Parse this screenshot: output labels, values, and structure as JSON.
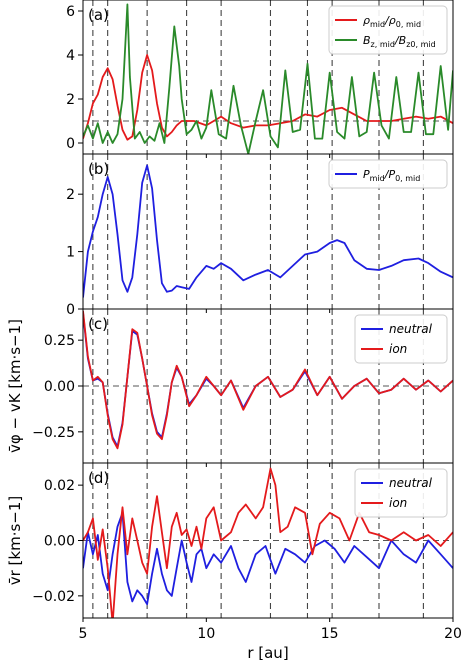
{
  "colors": {
    "red": "#e41a1c",
    "green": "#2a8a2a",
    "blue": "#1f1fe0",
    "refline": "#555555",
    "vline": "#444444"
  },
  "vlines": [
    5.4,
    6.0,
    7.6,
    9.2,
    10.6,
    12.6,
    14.1,
    15.1,
    17.0,
    18.8
  ],
  "xaxis": {
    "label": "r [au]",
    "range": [
      5,
      20
    ],
    "ticks": [
      "5",
      "10",
      "15",
      "20"
    ]
  },
  "chart_data": [
    {
      "type": "line",
      "panel_label": "(a)",
      "ylim": [
        -0.5,
        6.5
      ],
      "yticks": [
        "0",
        "2",
        "4",
        "6"
      ],
      "ylabel": "",
      "refline_y": 1.0,
      "legend_position": "top-right",
      "series": [
        {
          "name": "ρmid/ρ0,mid",
          "color": "red",
          "legend_main": "ρ",
          "legend_sub": "mid",
          "legend_div": "/ρ",
          "legend_sub2": "0, mid",
          "x": [
            5.0,
            5.2,
            5.4,
            5.6,
            5.8,
            6.0,
            6.2,
            6.4,
            6.6,
            6.8,
            7.0,
            7.2,
            7.4,
            7.6,
            7.8,
            8.0,
            8.2,
            8.4,
            8.6,
            8.8,
            9.0,
            9.5,
            10.0,
            10.6,
            11.0,
            11.5,
            12.0,
            12.5,
            13.0,
            13.5,
            14.0,
            14.5,
            15.0,
            15.5,
            16.0,
            16.5,
            17.0,
            17.5,
            18.0,
            18.5,
            19.0,
            19.5,
            20.0
          ],
          "y": [
            0.2,
            0.9,
            1.8,
            2.2,
            3.0,
            3.4,
            2.9,
            1.7,
            0.6,
            0.15,
            0.3,
            1.5,
            3.2,
            4.0,
            3.3,
            1.8,
            0.7,
            0.3,
            0.5,
            0.8,
            1.0,
            1.0,
            0.8,
            1.2,
            0.9,
            0.7,
            0.8,
            0.8,
            0.9,
            1.0,
            1.3,
            1.2,
            1.5,
            1.6,
            1.3,
            1.0,
            1.0,
            1.0,
            1.1,
            1.2,
            1.1,
            1.2,
            0.9
          ]
        },
        {
          "name": "Bz,mid/Bz0,mid",
          "color": "green",
          "legend_main": "B",
          "legend_sub": "z, mid",
          "legend_div": "/B",
          "legend_sub2": "z0, mid",
          "x": [
            5.0,
            5.2,
            5.4,
            5.6,
            5.8,
            6.0,
            6.2,
            6.4,
            6.6,
            6.8,
            6.9,
            7.1,
            7.3,
            7.5,
            7.7,
            7.9,
            8.1,
            8.3,
            8.5,
            8.7,
            8.9,
            9.0,
            9.2,
            9.4,
            9.6,
            9.8,
            10.0,
            10.2,
            10.5,
            10.8,
            11.1,
            11.4,
            11.7,
            12.0,
            12.3,
            12.6,
            12.9,
            13.2,
            13.5,
            13.8,
            14.1,
            14.4,
            14.7,
            15.0,
            15.3,
            15.6,
            15.9,
            16.2,
            16.5,
            16.8,
            17.1,
            17.4,
            17.7,
            18.0,
            18.3,
            18.6,
            18.9,
            19.2,
            19.5,
            19.8,
            20.0
          ],
          "y": [
            0.3,
            0.8,
            0.2,
            0.9,
            0.0,
            0.5,
            0.0,
            0.4,
            2.0,
            6.3,
            3.0,
            0.2,
            0.5,
            0.0,
            0.3,
            0.1,
            0.9,
            0.0,
            2.5,
            5.3,
            3.5,
            2.0,
            0.4,
            0.6,
            1.0,
            0.2,
            0.7,
            2.4,
            0.4,
            0.2,
            2.6,
            0.8,
            -0.5,
            1.0,
            2.4,
            0.3,
            -0.2,
            3.3,
            0.5,
            0.6,
            3.6,
            0.2,
            0.2,
            3.2,
            0.5,
            0.2,
            3.0,
            0.3,
            0.5,
            3.2,
            0.8,
            0.2,
            3.0,
            0.5,
            0.5,
            3.2,
            0.4,
            0.4,
            3.5,
            0.6,
            3.3
          ]
        }
      ]
    },
    {
      "type": "line",
      "panel_label": "(b)",
      "ylim": [
        0,
        2.7
      ],
      "yticks": [
        "0",
        "1",
        "2"
      ],
      "ylabel": "",
      "legend_position": "top-right",
      "series": [
        {
          "name": "Pmid/P0,mid",
          "color": "blue",
          "legend_main": "P",
          "legend_sub": "mid",
          "legend_div": "/P",
          "legend_sub2": "0, mid",
          "x": [
            5.0,
            5.2,
            5.4,
            5.6,
            5.8,
            6.0,
            6.2,
            6.4,
            6.6,
            6.8,
            7.0,
            7.2,
            7.4,
            7.6,
            7.8,
            8.0,
            8.2,
            8.4,
            8.6,
            8.8,
            9.0,
            9.3,
            9.6,
            10.0,
            10.3,
            10.6,
            11.0,
            11.5,
            12.0,
            12.5,
            13.0,
            13.5,
            14.0,
            14.5,
            15.0,
            15.3,
            15.6,
            16.0,
            16.5,
            17.0,
            17.5,
            18.0,
            18.6,
            19.0,
            19.5,
            20.0
          ],
          "y": [
            0.2,
            1.0,
            1.35,
            1.6,
            2.0,
            2.3,
            2.0,
            1.3,
            0.5,
            0.3,
            0.55,
            1.3,
            2.2,
            2.5,
            2.1,
            1.2,
            0.45,
            0.3,
            0.32,
            0.4,
            0.38,
            0.35,
            0.55,
            0.75,
            0.7,
            0.8,
            0.7,
            0.5,
            0.6,
            0.68,
            0.55,
            0.75,
            0.95,
            1.0,
            1.15,
            1.2,
            1.15,
            0.85,
            0.7,
            0.68,
            0.75,
            0.85,
            0.88,
            0.8,
            0.65,
            0.55
          ]
        }
      ]
    },
    {
      "type": "line",
      "panel_label": "(c)",
      "ylim": [
        -0.42,
        0.42
      ],
      "yticks": [
        "−0.25",
        "0.00",
        "0.25"
      ],
      "ytick_values": [
        -0.25,
        0,
        0.25
      ],
      "ylabel": "v̄φ − vK [km·s−1]",
      "refline_y": 0.0,
      "legend_position": "top-right",
      "series": [
        {
          "name": "neutral",
          "color": "blue",
          "x": [
            5.0,
            5.2,
            5.4,
            5.6,
            5.8,
            6.0,
            6.2,
            6.4,
            6.6,
            6.8,
            7.0,
            7.2,
            7.4,
            7.6,
            7.8,
            8.0,
            8.2,
            8.4,
            8.6,
            8.8,
            9.0,
            9.3,
            9.6,
            10.0,
            10.3,
            10.6,
            11.0,
            11.5,
            12.0,
            12.5,
            13.0,
            13.5,
            14.0,
            14.5,
            15.0,
            15.5,
            16.0,
            16.5,
            17.0,
            17.5,
            18.0,
            18.5,
            19.0,
            19.5,
            20.0
          ],
          "y": [
            0.4,
            0.15,
            0.03,
            0.04,
            0.02,
            -0.15,
            -0.28,
            -0.33,
            -0.2,
            0.05,
            0.3,
            0.28,
            0.15,
            0.0,
            -0.15,
            -0.25,
            -0.28,
            -0.15,
            0.02,
            0.1,
            0.05,
            -0.1,
            -0.05,
            0.04,
            0.0,
            -0.05,
            0.03,
            -0.12,
            0.0,
            0.05,
            -0.06,
            -0.02,
            0.08,
            -0.05,
            0.05,
            -0.07,
            0.0,
            0.04,
            -0.04,
            -0.02,
            0.04,
            -0.02,
            0.03,
            -0.03,
            0.03
          ]
        },
        {
          "name": "ion",
          "color": "red",
          "x": [
            5.0,
            5.2,
            5.4,
            5.6,
            5.8,
            6.0,
            6.2,
            6.4,
            6.6,
            6.8,
            7.0,
            7.2,
            7.4,
            7.6,
            7.8,
            8.0,
            8.2,
            8.4,
            8.6,
            8.8,
            9.0,
            9.3,
            9.6,
            10.0,
            10.3,
            10.6,
            11.0,
            11.5,
            12.0,
            12.5,
            13.0,
            13.5,
            14.0,
            14.5,
            15.0,
            15.5,
            16.0,
            16.5,
            17.0,
            17.5,
            18.0,
            18.5,
            19.0,
            19.5,
            20.0
          ],
          "y": [
            0.41,
            0.16,
            0.03,
            0.05,
            0.02,
            -0.16,
            -0.29,
            -0.34,
            -0.21,
            0.05,
            0.31,
            0.29,
            0.15,
            0.0,
            -0.16,
            -0.26,
            -0.29,
            -0.16,
            0.02,
            0.11,
            0.05,
            -0.11,
            -0.05,
            0.05,
            0.0,
            -0.05,
            0.03,
            -0.13,
            0.0,
            0.05,
            -0.06,
            -0.02,
            0.09,
            -0.05,
            0.05,
            -0.07,
            0.0,
            0.04,
            -0.04,
            -0.02,
            0.04,
            -0.02,
            0.03,
            -0.03,
            0.03
          ]
        }
      ]
    },
    {
      "type": "line",
      "panel_label": "(d)",
      "ylim": [
        -0.028,
        0.028
      ],
      "yticks": [
        "−0.02",
        "0.00",
        "0.02"
      ],
      "ytick_values": [
        -0.02,
        0,
        0.02
      ],
      "ylabel": "v̄r [km·s−1]",
      "refline_y": 0.0,
      "legend_position": "top-right",
      "series": [
        {
          "name": "neutral",
          "color": "blue",
          "x": [
            5.0,
            5.2,
            5.4,
            5.6,
            5.8,
            6.0,
            6.2,
            6.4,
            6.6,
            6.8,
            7.0,
            7.2,
            7.4,
            7.6,
            7.8,
            8.0,
            8.2,
            8.4,
            8.6,
            8.8,
            9.0,
            9.2,
            9.4,
            9.6,
            9.8,
            10.0,
            10.3,
            10.6,
            11.0,
            11.3,
            11.6,
            12.0,
            12.4,
            12.8,
            13.2,
            13.6,
            14.0,
            14.4,
            14.8,
            15.2,
            15.6,
            16.0,
            16.5,
            17.0,
            17.5,
            18.0,
            18.5,
            19.0,
            19.5,
            20.0
          ],
          "y": [
            -0.01,
            0.003,
            -0.005,
            0.002,
            -0.012,
            -0.018,
            -0.005,
            0.005,
            0.01,
            -0.015,
            -0.022,
            -0.018,
            -0.02,
            -0.023,
            -0.012,
            -0.003,
            -0.012,
            -0.018,
            -0.02,
            -0.01,
            0.0,
            -0.008,
            -0.015,
            -0.005,
            -0.003,
            -0.01,
            -0.005,
            -0.008,
            -0.002,
            -0.01,
            -0.015,
            -0.005,
            -0.002,
            -0.012,
            -0.003,
            -0.005,
            -0.008,
            -0.002,
            0.0,
            -0.003,
            -0.008,
            -0.002,
            -0.006,
            -0.01,
            0.0,
            -0.005,
            -0.008,
            0.0,
            -0.005,
            -0.01
          ]
        },
        {
          "name": "ion",
          "color": "red",
          "x": [
            5.0,
            5.2,
            5.4,
            5.6,
            5.8,
            6.0,
            6.2,
            6.4,
            6.6,
            6.8,
            7.0,
            7.2,
            7.4,
            7.6,
            7.8,
            8.0,
            8.2,
            8.4,
            8.6,
            8.8,
            9.0,
            9.2,
            9.4,
            9.6,
            9.8,
            10.0,
            10.3,
            10.6,
            11.0,
            11.3,
            11.6,
            12.0,
            12.3,
            12.6,
            12.8,
            13.0,
            13.3,
            13.6,
            14.0,
            14.3,
            14.6,
            15.0,
            15.4,
            15.8,
            16.2,
            16.6,
            17.0,
            17.5,
            18.0,
            18.5,
            19.0,
            19.5,
            20.0
          ],
          "y": [
            0.0,
            0.003,
            0.008,
            -0.007,
            0.004,
            -0.01,
            -0.03,
            -0.005,
            0.012,
            -0.005,
            0.008,
            0.0,
            -0.008,
            -0.012,
            0.005,
            0.016,
            0.003,
            -0.01,
            0.005,
            0.01,
            0.002,
            0.004,
            -0.002,
            0.005,
            -0.003,
            0.008,
            0.012,
            0.0,
            0.003,
            0.01,
            0.013,
            0.008,
            0.012,
            0.026,
            0.02,
            0.003,
            0.005,
            0.012,
            0.01,
            -0.005,
            0.006,
            0.01,
            0.008,
            0.0,
            0.01,
            0.003,
            0.002,
            0.0,
            0.003,
            0.0,
            0.002,
            -0.002,
            0.003
          ]
        }
      ]
    }
  ]
}
